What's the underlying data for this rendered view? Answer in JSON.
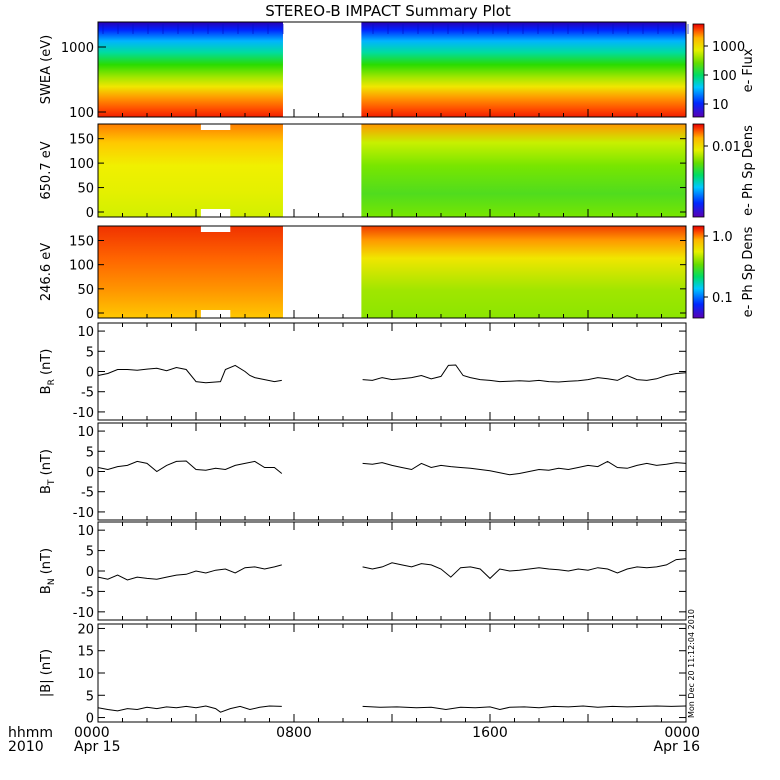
{
  "title": "STEREO-B IMPACT Summary Plot",
  "stamp": "Mon Dec 20 11:12:04 2010",
  "time_axis": {
    "range_hours": [
      0,
      24
    ],
    "gap_hours": [
      7.55,
      10.75
    ],
    "ticks": [
      {
        "hour": 0,
        "label": "0000",
        "sublabel": "Apr 15"
      },
      {
        "hour": 8,
        "label": "0800",
        "sublabel": ""
      },
      {
        "hour": 16,
        "label": "1600",
        "sublabel": ""
      },
      {
        "hour": 24,
        "label": "0000",
        "sublabel": "Apr 16"
      }
    ],
    "corner_label": "hhmm",
    "corner_year": "2010"
  },
  "spectrogram_panels": [
    {
      "id": "swea",
      "ylabel": "SWEA (eV)",
      "y_scale": "log",
      "y_ticks": [
        "1000",
        "100"
      ],
      "colorbar_label": "e- Flux",
      "colorbar_ticks": [
        "1000",
        "100",
        "10"
      ]
    },
    {
      "id": "pad650",
      "ylabel": "650.7 eV",
      "y_scale": "linear",
      "ylim": [
        0,
        180
      ],
      "y_ticks": [
        "150",
        "100",
        "50",
        "0"
      ],
      "colorbar_label": "e- Ph Sp Dens",
      "colorbar_ticks": [
        "0.01"
      ]
    },
    {
      "id": "pad246",
      "ylabel": "246.6 eV",
      "y_scale": "linear",
      "ylim": [
        0,
        180
      ],
      "y_ticks": [
        "150",
        "100",
        "50",
        "0"
      ],
      "colorbar_label": "e- Ph Sp Dens",
      "colorbar_ticks": [
        "1.0",
        "0.1"
      ]
    }
  ],
  "colors": {
    "palette": [
      "#5a00b4",
      "#0028ff",
      "#00c8ff",
      "#00dc64",
      "#64dc00",
      "#e6f000",
      "#ffb400",
      "#ff5000",
      "#e60000"
    ]
  },
  "line_panels": [
    {
      "id": "br",
      "ylabel_main": "B",
      "ylabel_sub": "R",
      "ylabel_unit": "(nT)",
      "ylim": [
        -12,
        12
      ],
      "y_ticks": [
        "10",
        "5",
        "0",
        "-5",
        "-10"
      ]
    },
    {
      "id": "bt",
      "ylabel_main": "B",
      "ylabel_sub": "T",
      "ylabel_unit": "(nT)",
      "ylim": [
        -12,
        12
      ],
      "y_ticks": [
        "10",
        "5",
        "0",
        "-5",
        "-10"
      ]
    },
    {
      "id": "bn",
      "ylabel_main": "B",
      "ylabel_sub": "N",
      "ylabel_unit": "(nT)",
      "ylim": [
        -12,
        12
      ],
      "y_ticks": [
        "10",
        "5",
        "0",
        "-5",
        "-10"
      ]
    },
    {
      "id": "bmag",
      "ylabel_main": "|B|",
      "ylabel_sub": "",
      "ylabel_unit": "(nT)",
      "ylim": [
        -1,
        21
      ],
      "y_ticks": [
        "20",
        "15",
        "10",
        "5",
        "0"
      ]
    }
  ],
  "chart_data": [
    {
      "type": "line",
      "name": "B_R (nT)",
      "ylim": [
        -12,
        12
      ],
      "x": [
        0,
        0.4,
        0.8,
        1.2,
        1.6,
        2.0,
        2.4,
        2.8,
        3.2,
        3.6,
        4.0,
        4.4,
        4.8,
        5.0,
        5.2,
        5.6,
        6.0,
        6.2,
        6.4,
        6.8,
        7.2,
        7.5,
        10.8,
        11.2,
        11.6,
        12.0,
        12.4,
        12.8,
        13.2,
        13.6,
        14.0,
        14.3,
        14.6,
        14.9,
        15.2,
        15.6,
        16.0,
        16.4,
        16.8,
        17.2,
        17.6,
        18.0,
        18.4,
        18.8,
        19.2,
        19.6,
        20.0,
        20.4,
        20.8,
        21.2,
        21.6,
        22.0,
        22.4,
        22.8,
        23.2,
        23.6,
        24.0
      ],
      "y": [
        -1,
        -0.5,
        0.5,
        0.5,
        0.3,
        0.6,
        0.8,
        0.2,
        1.0,
        0.5,
        -2.5,
        -2.8,
        -2.6,
        -2.5,
        0.5,
        1.5,
        0.0,
        -1.0,
        -1.5,
        -2.0,
        -2.5,
        -2.2,
        -2,
        -2.2,
        -1.5,
        -2.0,
        -1.8,
        -1.5,
        -1.0,
        -1.8,
        -1.2,
        1.5,
        1.6,
        -1.0,
        -1.5,
        -2.0,
        -2.2,
        -2.5,
        -2.4,
        -2.3,
        -2.4,
        -2.2,
        -2.5,
        -2.6,
        -2.4,
        -2.3,
        -2.0,
        -1.5,
        -1.8,
        -2.2,
        -1.0,
        -2.0,
        -2.2,
        -1.8,
        -1.0,
        -0.5,
        -0.3
      ]
    },
    {
      "type": "line",
      "name": "B_T (nT)",
      "ylim": [
        -12,
        12
      ],
      "x": [
        0,
        0.4,
        0.8,
        1.2,
        1.6,
        2.0,
        2.4,
        2.8,
        3.2,
        3.6,
        4.0,
        4.4,
        4.8,
        5.2,
        5.6,
        6.0,
        6.4,
        6.8,
        7.2,
        7.5,
        10.8,
        11.2,
        11.6,
        12.0,
        12.4,
        12.8,
        13.2,
        13.6,
        14.0,
        14.4,
        14.8,
        15.2,
        15.6,
        16.0,
        16.4,
        16.8,
        17.2,
        17.6,
        18.0,
        18.4,
        18.8,
        19.2,
        19.6,
        20.0,
        20.4,
        20.8,
        21.2,
        21.6,
        22.0,
        22.4,
        22.8,
        23.2,
        23.6,
        24.0
      ],
      "y": [
        1,
        0.5,
        1.2,
        1.5,
        2.5,
        2.0,
        0.0,
        1.5,
        2.5,
        2.6,
        0.5,
        0.3,
        0.8,
        0.5,
        1.5,
        2.0,
        2.5,
        1.0,
        1.0,
        -0.5,
        2,
        1.8,
        2.2,
        1.5,
        1.0,
        0.5,
        2.0,
        1.0,
        1.5,
        1.2,
        1.0,
        0.8,
        0.5,
        0.2,
        -0.3,
        -0.8,
        -0.5,
        0.0,
        0.5,
        0.3,
        0.8,
        0.5,
        1.0,
        1.5,
        1.2,
        2.5,
        1.0,
        0.8,
        1.5,
        2.0,
        1.5,
        1.8,
        2.2,
        2.0
      ]
    },
    {
      "type": "line",
      "name": "B_N (nT)",
      "ylim": [
        -12,
        12
      ],
      "x": [
        0,
        0.4,
        0.8,
        1.2,
        1.6,
        2.0,
        2.4,
        2.8,
        3.2,
        3.6,
        4.0,
        4.4,
        4.8,
        5.2,
        5.6,
        6.0,
        6.4,
        6.8,
        7.2,
        7.5,
        10.8,
        11.2,
        11.6,
        12.0,
        12.4,
        12.8,
        13.2,
        13.6,
        14.0,
        14.4,
        14.8,
        15.2,
        15.6,
        16.0,
        16.4,
        16.8,
        17.2,
        17.6,
        18.0,
        18.4,
        18.8,
        19.2,
        19.6,
        20.0,
        20.4,
        20.8,
        21.2,
        21.6,
        22.0,
        22.4,
        22.8,
        23.2,
        23.6,
        24.0
      ],
      "y": [
        -1.5,
        -2.0,
        -1.0,
        -2.2,
        -1.5,
        -1.8,
        -2.0,
        -1.5,
        -1.0,
        -0.8,
        0.0,
        -0.5,
        0.2,
        0.5,
        -0.5,
        0.8,
        1.0,
        0.5,
        1.0,
        1.5,
        1,
        0.5,
        1.0,
        2.0,
        1.5,
        1.0,
        1.8,
        1.5,
        0.5,
        -1.5,
        0.8,
        1.0,
        0.5,
        -1.8,
        0.5,
        0.0,
        0.2,
        0.5,
        0.8,
        0.5,
        0.3,
        0.0,
        0.5,
        0.2,
        0.8,
        0.5,
        -0.5,
        0.5,
        1.0,
        0.8,
        1.0,
        1.5,
        2.8,
        3.0
      ]
    },
    {
      "type": "line",
      "name": "|B| (nT)",
      "ylim": [
        -1,
        21
      ],
      "x": [
        0,
        0.4,
        0.8,
        1.2,
        1.6,
        2.0,
        2.4,
        2.8,
        3.2,
        3.6,
        4.0,
        4.4,
        4.8,
        5.0,
        5.4,
        5.8,
        6.2,
        6.6,
        7.0,
        7.5,
        10.8,
        11.5,
        12.2,
        13.0,
        13.6,
        14.2,
        14.8,
        15.4,
        16.0,
        16.4,
        16.8,
        17.4,
        18.0,
        18.6,
        19.2,
        19.8,
        20.4,
        21.0,
        21.6,
        22.2,
        22.8,
        23.4,
        24.0
      ],
      "y": [
        2.2,
        1.8,
        1.5,
        2.0,
        1.8,
        2.3,
        2.0,
        2.4,
        2.2,
        2.5,
        2.2,
        2.6,
        2.0,
        1.2,
        2.0,
        2.5,
        1.8,
        2.3,
        2.6,
        2.5,
        2.5,
        2.3,
        2.4,
        2.2,
        2.3,
        1.8,
        2.3,
        2.2,
        2.4,
        1.8,
        2.3,
        2.4,
        2.2,
        2.5,
        2.4,
        2.6,
        2.3,
        2.5,
        2.4,
        2.5,
        2.6,
        2.5,
        2.6
      ]
    }
  ]
}
